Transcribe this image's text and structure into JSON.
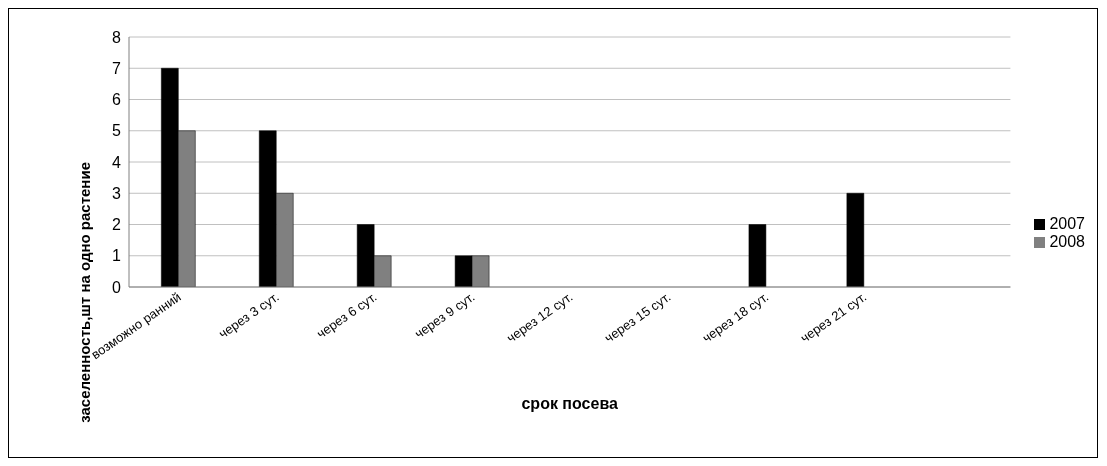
{
  "chart_data": {
    "type": "bar",
    "xlabel": "срок посева",
    "ylabel": "заселенность,шт на одно растение",
    "categories": [
      "возможно ранний",
      "через 3 сут.",
      "через 6 сут.",
      "через 9 сут.",
      "через 12 сут.",
      "через 15 сут.",
      "через 18 сут.",
      "через 21 сут.",
      null
    ],
    "series": [
      {
        "name": "2007",
        "color": "#000000",
        "values": [
          7,
          5,
          2,
          1,
          0,
          0,
          2,
          3,
          null
        ]
      },
      {
        "name": "2008",
        "color": "#808080",
        "values": [
          5,
          3,
          1,
          1,
          0,
          0,
          0,
          0,
          null
        ]
      }
    ],
    "ylim": [
      0,
      8
    ],
    "yticks": [
      0,
      1,
      2,
      3,
      4,
      5,
      6,
      7,
      8
    ],
    "grid": "y",
    "legend": "right"
  }
}
